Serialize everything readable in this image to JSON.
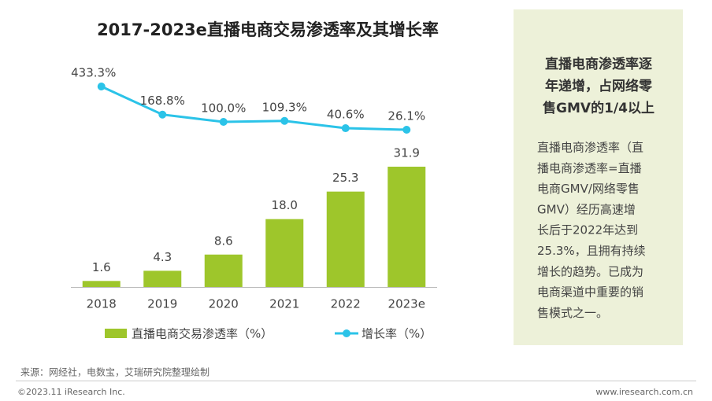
{
  "chart_data": {
    "type": "bar",
    "title": "2017-2023e直播电商交易渗透率及其增长率",
    "categories": [
      "2018",
      "2019",
      "2020",
      "2021",
      "2022",
      "2023e"
    ],
    "series": [
      {
        "name": "直播电商交易渗透率（%）",
        "type": "bar",
        "color": "#9ec62b",
        "values": [
          1.6,
          4.3,
          8.6,
          18.0,
          25.3,
          31.9
        ],
        "value_labels": [
          "1.6",
          "4.3",
          "8.6",
          "18.0",
          "25.3",
          "31.9"
        ]
      },
      {
        "name": "增长率（%）",
        "type": "line",
        "color": "#2bc3e8",
        "values": [
          433.3,
          168.8,
          100.0,
          109.3,
          40.6,
          26.1
        ],
        "value_labels": [
          "433.3%",
          "168.8%",
          "100.0%",
          "109.3%",
          "40.6%",
          "26.1%"
        ]
      }
    ]
  },
  "panel": {
    "heading": [
      "直播电商渗透率逐",
      "年递增，占网络零",
      "售GMV的1/4以上"
    ],
    "body": [
      "直播电商渗透率（直",
      "播电商渗透率=直播",
      "电商GMV/网络零售",
      "GMV）经历高速增",
      "长后于2022年达到",
      "25.3%，且拥有持续",
      "增长的趋势。已成为",
      "电商渠道中重要的销",
      "售模式之一。"
    ]
  },
  "footer": {
    "source": "来源：网经社，电数宝，艾瑞研究院整理绘制",
    "copyright": "©2023.11 iResearch Inc.",
    "website": "www.iresearch.com.cn"
  }
}
